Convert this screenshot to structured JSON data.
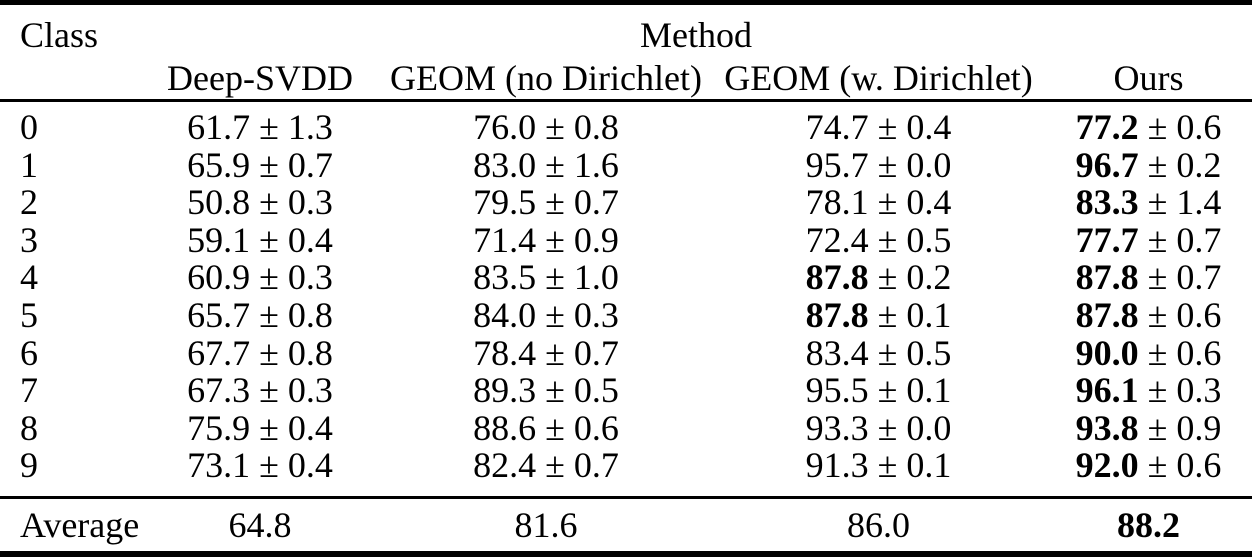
{
  "page": {
    "background_color": "#ffffff",
    "text_color": "#000000",
    "rule_color": "#000000"
  },
  "table": {
    "pm_symbol": "±",
    "header": {
      "class_label": "Class",
      "method_group_label": "Method",
      "method_columns": [
        "Deep-SVDD",
        "GEOM (no Dirichlet)",
        "GEOM (w. Dirichlet)",
        "Ours"
      ]
    },
    "rows": [
      {
        "class": "0",
        "values": [
          {
            "mean": "61.7",
            "std": "1.3",
            "bold": false
          },
          {
            "mean": "76.0",
            "std": "0.8",
            "bold": false
          },
          {
            "mean": "74.7",
            "std": "0.4",
            "bold": false
          },
          {
            "mean": "77.2",
            "std": "0.6",
            "bold": true
          }
        ]
      },
      {
        "class": "1",
        "values": [
          {
            "mean": "65.9",
            "std": "0.7",
            "bold": false
          },
          {
            "mean": "83.0",
            "std": "1.6",
            "bold": false
          },
          {
            "mean": "95.7",
            "std": "0.0",
            "bold": false
          },
          {
            "mean": "96.7",
            "std": "0.2",
            "bold": true
          }
        ]
      },
      {
        "class": "2",
        "values": [
          {
            "mean": "50.8",
            "std": "0.3",
            "bold": false
          },
          {
            "mean": "79.5",
            "std": "0.7",
            "bold": false
          },
          {
            "mean": "78.1",
            "std": "0.4",
            "bold": false
          },
          {
            "mean": "83.3",
            "std": "1.4",
            "bold": true
          }
        ]
      },
      {
        "class": "3",
        "values": [
          {
            "mean": "59.1",
            "std": "0.4",
            "bold": false
          },
          {
            "mean": "71.4",
            "std": "0.9",
            "bold": false
          },
          {
            "mean": "72.4",
            "std": "0.5",
            "bold": false
          },
          {
            "mean": "77.7",
            "std": "0.7",
            "bold": true
          }
        ]
      },
      {
        "class": "4",
        "values": [
          {
            "mean": "60.9",
            "std": "0.3",
            "bold": false
          },
          {
            "mean": "83.5",
            "std": "1.0",
            "bold": false
          },
          {
            "mean": "87.8",
            "std": "0.2",
            "bold": true
          },
          {
            "mean": "87.8",
            "std": "0.7",
            "bold": true
          }
        ]
      },
      {
        "class": "5",
        "values": [
          {
            "mean": "65.7",
            "std": "0.8",
            "bold": false
          },
          {
            "mean": "84.0",
            "std": "0.3",
            "bold": false
          },
          {
            "mean": "87.8",
            "std": "0.1",
            "bold": true
          },
          {
            "mean": "87.8",
            "std": "0.6",
            "bold": true
          }
        ]
      },
      {
        "class": "6",
        "values": [
          {
            "mean": "67.7",
            "std": "0.8",
            "bold": false
          },
          {
            "mean": "78.4",
            "std": "0.7",
            "bold": false
          },
          {
            "mean": "83.4",
            "std": "0.5",
            "bold": false
          },
          {
            "mean": "90.0",
            "std": "0.6",
            "bold": true
          }
        ]
      },
      {
        "class": "7",
        "values": [
          {
            "mean": "67.3",
            "std": "0.3",
            "bold": false
          },
          {
            "mean": "89.3",
            "std": "0.5",
            "bold": false
          },
          {
            "mean": "95.5",
            "std": "0.1",
            "bold": false
          },
          {
            "mean": "96.1",
            "std": "0.3",
            "bold": true
          }
        ]
      },
      {
        "class": "8",
        "values": [
          {
            "mean": "75.9",
            "std": "0.4",
            "bold": false
          },
          {
            "mean": "88.6",
            "std": "0.6",
            "bold": false
          },
          {
            "mean": "93.3",
            "std": "0.0",
            "bold": false
          },
          {
            "mean": "93.8",
            "std": "0.9",
            "bold": true
          }
        ]
      },
      {
        "class": "9",
        "values": [
          {
            "mean": "73.1",
            "std": "0.4",
            "bold": false
          },
          {
            "mean": "82.4",
            "std": "0.7",
            "bold": false
          },
          {
            "mean": "91.3",
            "std": "0.1",
            "bold": false
          },
          {
            "mean": "92.0",
            "std": "0.6",
            "bold": true
          }
        ]
      }
    ],
    "average": {
      "label": "Average",
      "values": [
        {
          "value": "64.8",
          "bold": false
        },
        {
          "value": "81.6",
          "bold": false
        },
        {
          "value": "86.0",
          "bold": false
        },
        {
          "value": "88.2",
          "bold": true
        }
      ]
    }
  }
}
